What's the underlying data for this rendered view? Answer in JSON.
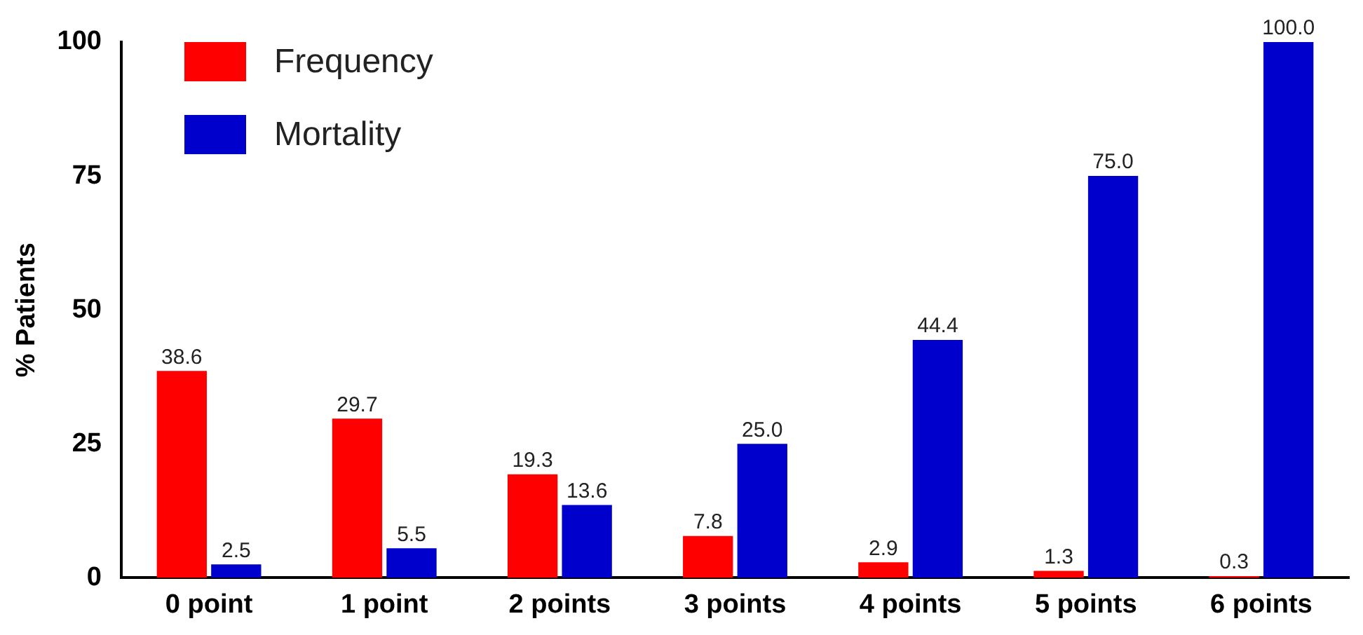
{
  "chart_data": {
    "type": "bar",
    "ylabel": "% Patients",
    "categories": [
      "0 point",
      "1 point",
      "2 points",
      "3 points",
      "4 points",
      "5 points",
      "6 points"
    ],
    "series": [
      {
        "name": "Frequency",
        "color": "#ff0000",
        "values": [
          38.6,
          29.7,
          19.3,
          7.8,
          2.9,
          1.3,
          0.3
        ],
        "value_labels": [
          "38.6",
          "29.7",
          "19.3",
          "7.8",
          "2.9",
          "1.3",
          "0.3"
        ]
      },
      {
        "name": "Mortality",
        "color": "#0000cc",
        "values": [
          2.5,
          5.5,
          13.6,
          25.0,
          44.4,
          75.0,
          100.0
        ],
        "value_labels": [
          "2.5",
          "5.5",
          "13.6",
          "25.0",
          "44.4",
          "75.0",
          "100.0"
        ]
      }
    ],
    "ylim": [
      0,
      100
    ],
    "yticks": [
      0,
      25,
      50,
      75,
      100
    ],
    "grid": false,
    "legend": "top left"
  }
}
